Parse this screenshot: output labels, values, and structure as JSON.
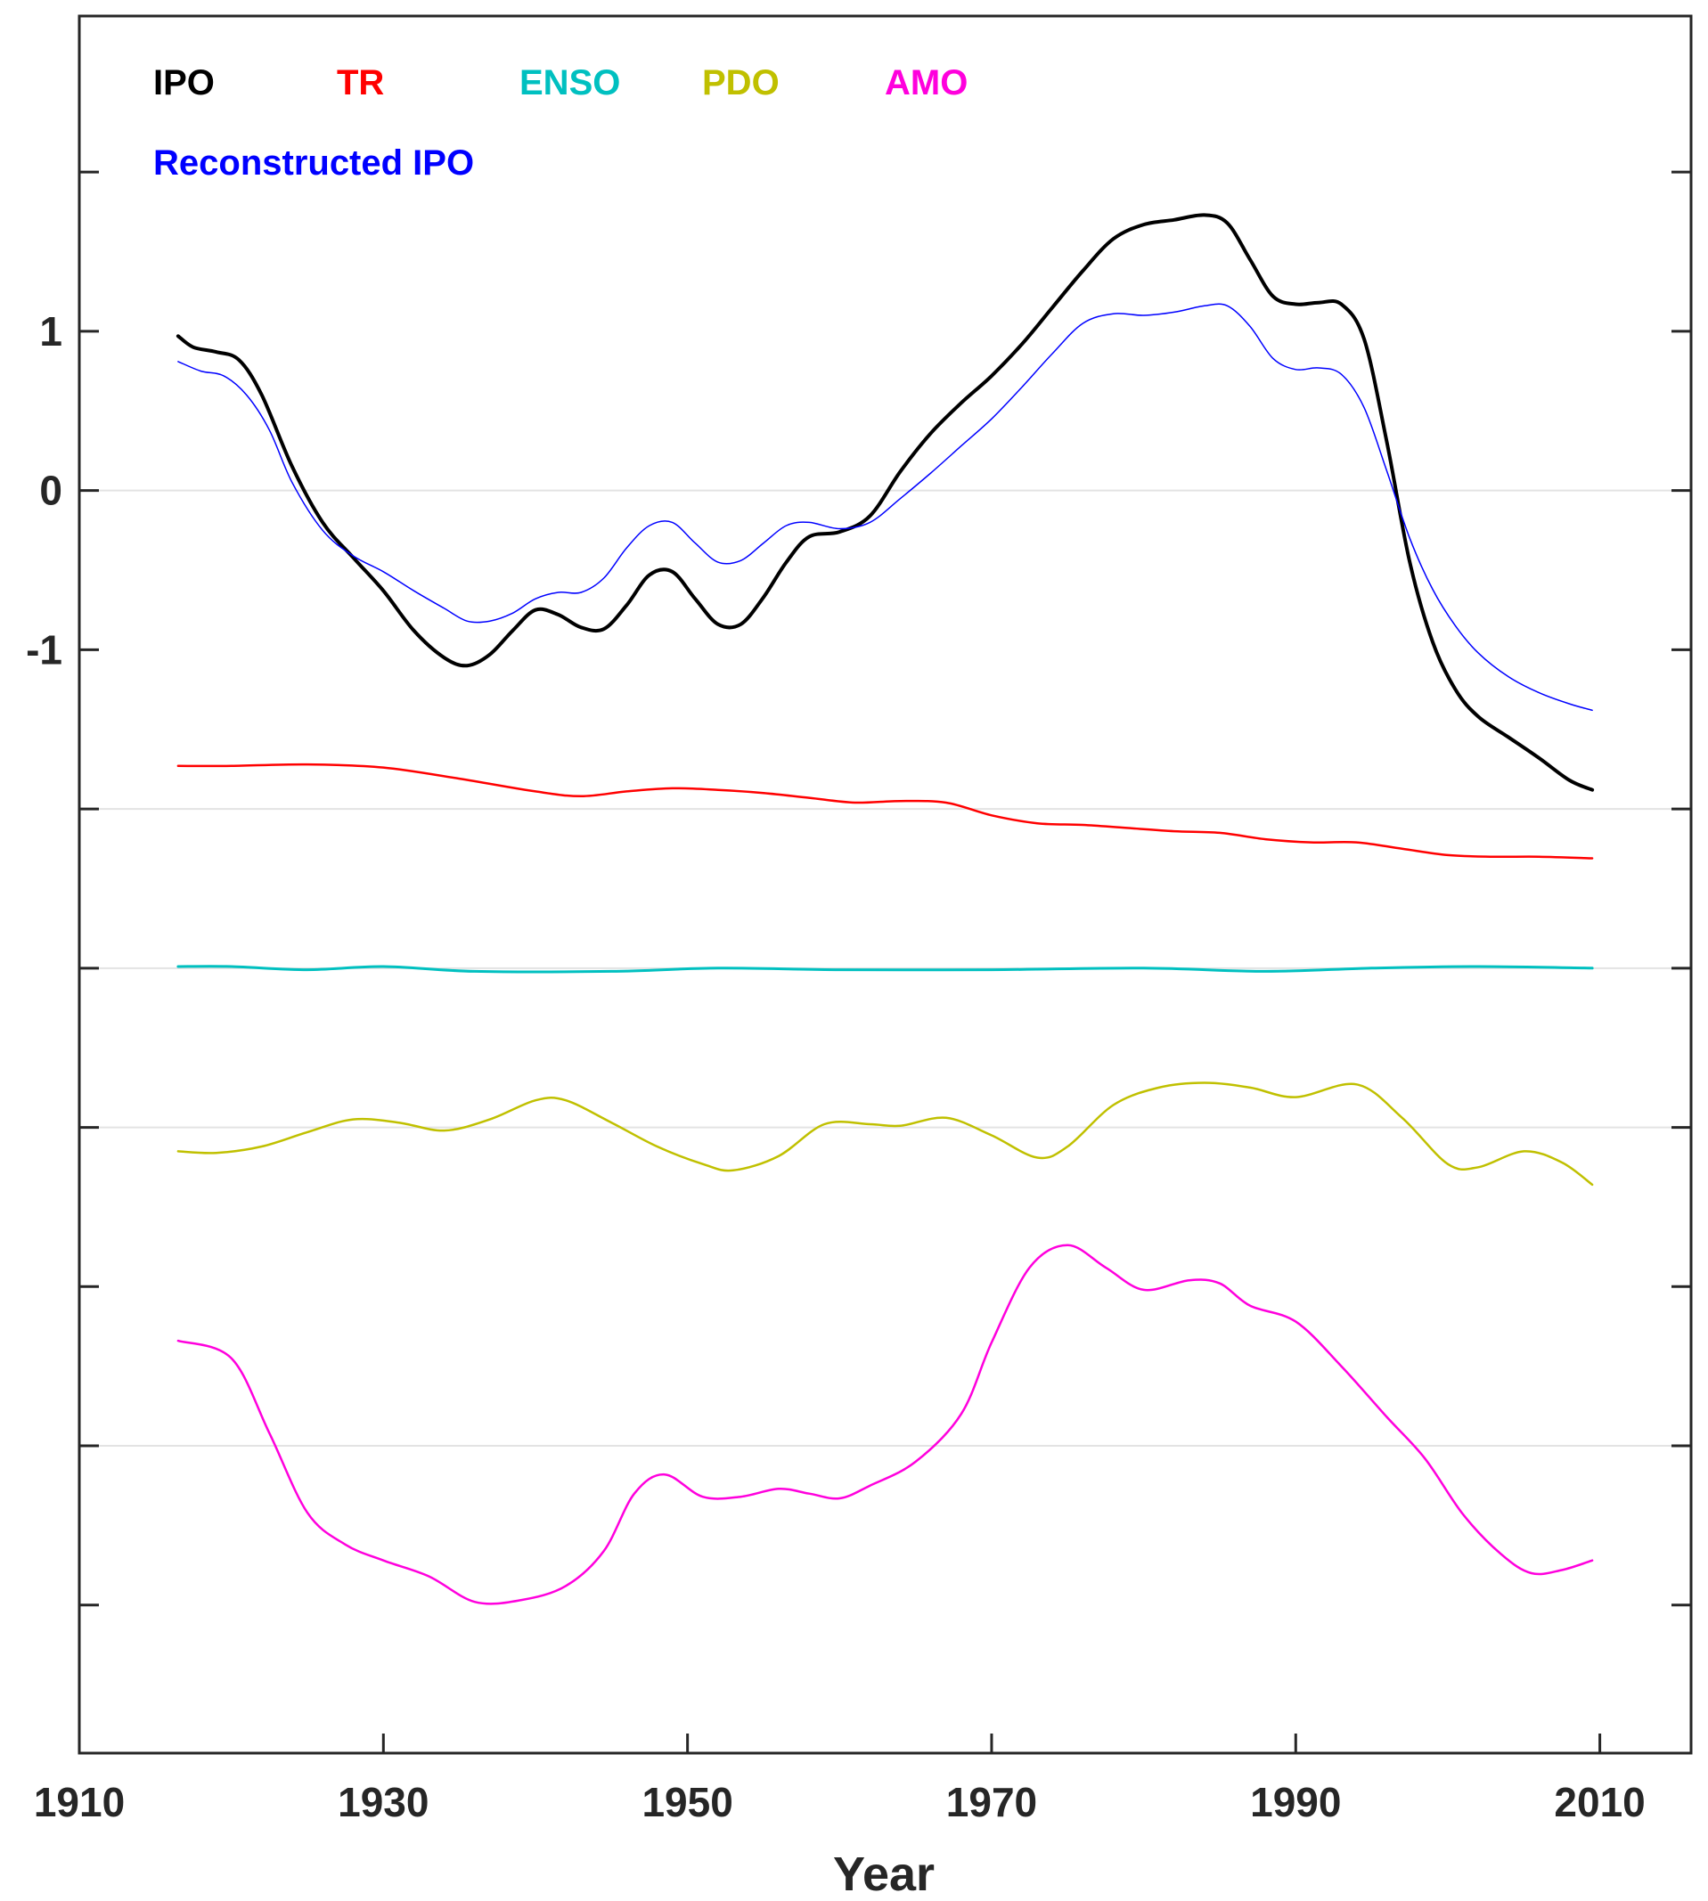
{
  "chart_data": {
    "type": "line",
    "title": "",
    "xlabel": "Year",
    "ylabel": "",
    "xlim": [
      1910,
      2016
    ],
    "ylim": [
      -7.93,
      2.98
    ],
    "grid": "horizontal",
    "legend_placement": "top-left",
    "x_ticks": [
      1910,
      1930,
      1950,
      1970,
      1990,
      2010
    ],
    "x_tick_labels": [
      "1910",
      "1930",
      "1950",
      "1970",
      "1990",
      "2010"
    ],
    "y_ticks": [
      2,
      1,
      0,
      -1,
      -2,
      -3,
      -4,
      -5,
      -6,
      -7
    ],
    "y_tick_labels": [
      "",
      "1",
      "0",
      "-1",
      "",
      "",
      "",
      "",
      "",
      ""
    ],
    "y_gridlines": [
      0,
      -2,
      -3,
      -4,
      -6
    ],
    "legend": [
      {
        "label": "IPO",
        "color": "#000000"
      },
      {
        "label": "TR",
        "color": "#ff0000"
      },
      {
        "label": "ENSO",
        "color": "#00c0c0"
      },
      {
        "label": "PDO",
        "color": "#c0c000"
      },
      {
        "label": "AMO",
        "color": "#ff00dd"
      },
      {
        "label": "Reconstructed IPO",
        "color": "#0000ff"
      }
    ],
    "series": [
      {
        "name": "IPO",
        "color": "#000000",
        "width": 4,
        "x": [
          1916.5,
          1917.5,
          1919,
          1920.5,
          1922,
          1924,
          1926,
          1928,
          1930,
          1932,
          1934,
          1935.5,
          1937,
          1938.5,
          1940,
          1941.5,
          1943,
          1944.5,
          1946,
          1947.5,
          1949,
          1950.5,
          1952,
          1953.5,
          1955,
          1956.5,
          1958,
          1960,
          1962,
          1964,
          1966,
          1968,
          1970,
          1972,
          1974,
          1976,
          1978,
          1980,
          1982,
          1984,
          1985.5,
          1987,
          1988.5,
          1990,
          1991.5,
          1993,
          1994.5,
          1996,
          1997.5,
          1999,
          2000.5,
          2002,
          2004,
          2006,
          2008,
          2009.5
        ],
        "values": [
          0.97,
          0.9,
          0.87,
          0.82,
          0.6,
          0.15,
          -0.2,
          -0.42,
          -0.63,
          -0.88,
          -1.05,
          -1.1,
          -1.03,
          -0.88,
          -0.75,
          -0.78,
          -0.86,
          -0.87,
          -0.72,
          -0.53,
          -0.51,
          -0.68,
          -0.84,
          -0.84,
          -0.67,
          -0.45,
          -0.29,
          -0.26,
          -0.16,
          0.12,
          0.36,
          0.55,
          0.72,
          0.92,
          1.15,
          1.38,
          1.58,
          1.67,
          1.7,
          1.73,
          1.68,
          1.45,
          1.22,
          1.17,
          1.18,
          1.17,
          0.95,
          0.3,
          -0.45,
          -0.95,
          -1.25,
          -1.42,
          -1.55,
          -1.68,
          -1.82,
          -1.88
        ]
      },
      {
        "name": "Reconstructed IPO",
        "color": "#0000ff",
        "width": 1.5,
        "x": [
          1916.5,
          1918,
          1919.5,
          1921,
          1922.5,
          1924,
          1926,
          1928,
          1930,
          1932,
          1934,
          1935.5,
          1937,
          1938.5,
          1940,
          1941.5,
          1943,
          1944.5,
          1946,
          1947.5,
          1949,
          1950.5,
          1952,
          1953.5,
          1955,
          1956.5,
          1958,
          1960,
          1962,
          1964,
          1966,
          1968,
          1970,
          1972,
          1974,
          1976,
          1978,
          1980,
          1982,
          1984,
          1985.5,
          1987,
          1988.5,
          1990,
          1991.5,
          1993,
          1994.5,
          1996,
          1997.5,
          1999,
          2000.5,
          2002,
          2004,
          2006,
          2008,
          2009.5
        ],
        "values": [
          0.81,
          0.75,
          0.72,
          0.6,
          0.38,
          0.05,
          -0.25,
          -0.41,
          -0.51,
          -0.63,
          -0.74,
          -0.82,
          -0.82,
          -0.77,
          -0.68,
          -0.64,
          -0.64,
          -0.55,
          -0.36,
          -0.22,
          -0.2,
          -0.33,
          -0.45,
          -0.44,
          -0.33,
          -0.22,
          -0.2,
          -0.24,
          -0.2,
          -0.05,
          0.11,
          0.28,
          0.45,
          0.65,
          0.86,
          1.05,
          1.11,
          1.1,
          1.12,
          1.16,
          1.16,
          1.03,
          0.83,
          0.76,
          0.77,
          0.73,
          0.52,
          0.12,
          -0.3,
          -0.62,
          -0.85,
          -1.02,
          -1.17,
          -1.27,
          -1.34,
          -1.38
        ]
      },
      {
        "name": "TR",
        "color": "#ff0000",
        "width": 2.5,
        "x": [
          1916.5,
          1920,
          1925,
          1930,
          1935,
          1940,
          1943,
          1946,
          1949,
          1952,
          1955,
          1958,
          1961,
          1964,
          1967,
          1970,
          1973,
          1976,
          1979,
          1982,
          1985,
          1988,
          1991,
          1994,
          1997,
          2000,
          2003,
          2006,
          2009.5
        ],
        "values": [
          -1.73,
          -1.73,
          -1.72,
          -1.74,
          -1.81,
          -1.89,
          -1.92,
          -1.89,
          -1.87,
          -1.88,
          -1.9,
          -1.93,
          -1.96,
          -1.95,
          -1.96,
          -2.04,
          -2.09,
          -2.1,
          -2.12,
          -2.14,
          -2.15,
          -2.19,
          -2.21,
          -2.21,
          -2.25,
          -2.29,
          -2.3,
          -2.3,
          -2.31
        ]
      },
      {
        "name": "ENSO",
        "color": "#00c0c0",
        "width": 3,
        "x": [
          1916.5,
          1920,
          1925,
          1930,
          1936,
          1945,
          1952,
          1960,
          1970,
          1980,
          1988,
          1995,
          2002,
          2009.5
        ],
        "values": [
          -2.99,
          -2.99,
          -3.01,
          -2.99,
          -3.02,
          -3.02,
          -3.0,
          -3.01,
          -3.01,
          -3.0,
          -3.02,
          -3.0,
          -2.99,
          -3.0
        ]
      },
      {
        "name": "PDO",
        "color": "#c0c000",
        "width": 2.5,
        "x": [
          1916.5,
          1919,
          1922,
          1925,
          1928,
          1931,
          1934,
          1937,
          1940,
          1942,
          1945,
          1948,
          1951,
          1953,
          1956,
          1959,
          1962,
          1964,
          1967,
          1970,
          1973,
          1975,
          1978,
          1981,
          1984,
          1987,
          1990,
          1994,
          1997,
          2000,
          2002,
          2005,
          2007.5,
          2009.5
        ],
        "values": [
          -4.15,
          -4.16,
          -4.12,
          -4.03,
          -3.95,
          -3.97,
          -4.02,
          -3.95,
          -3.83,
          -3.83,
          -3.97,
          -4.12,
          -4.23,
          -4.27,
          -4.18,
          -3.98,
          -3.98,
          -3.99,
          -3.94,
          -4.05,
          -4.19,
          -4.12,
          -3.86,
          -3.75,
          -3.72,
          -3.75,
          -3.81,
          -3.73,
          -3.94,
          -4.23,
          -4.25,
          -4.15,
          -4.22,
          -4.36
        ]
      },
      {
        "name": "AMO",
        "color": "#ff00dd",
        "width": 2.5,
        "x": [
          1916.5,
          1920,
          1922.5,
          1925,
          1927.5,
          1930,
          1933,
          1936,
          1939,
          1942,
          1944.5,
          1946.5,
          1948.5,
          1951,
          1953.5,
          1956,
          1958,
          1960,
          1962,
          1965,
          1968,
          1970,
          1972.5,
          1975,
          1977.5,
          1980,
          1983,
          1985,
          1987,
          1990,
          1993,
          1996,
          1998.5,
          2001,
          2003.5,
          2005.5,
          2007.5,
          2009.5
        ],
        "values": [
          -5.34,
          -5.45,
          -5.92,
          -6.42,
          -6.62,
          -6.72,
          -6.82,
          -6.98,
          -6.97,
          -6.88,
          -6.66,
          -6.3,
          -6.18,
          -6.32,
          -6.32,
          -6.27,
          -6.3,
          -6.33,
          -6.25,
          -6.1,
          -5.8,
          -5.35,
          -4.88,
          -4.74,
          -4.88,
          -5.02,
          -4.96,
          -4.98,
          -5.12,
          -5.22,
          -5.5,
          -5.82,
          -6.08,
          -6.43,
          -6.68,
          -6.8,
          -6.78,
          -6.72
        ]
      }
    ]
  }
}
